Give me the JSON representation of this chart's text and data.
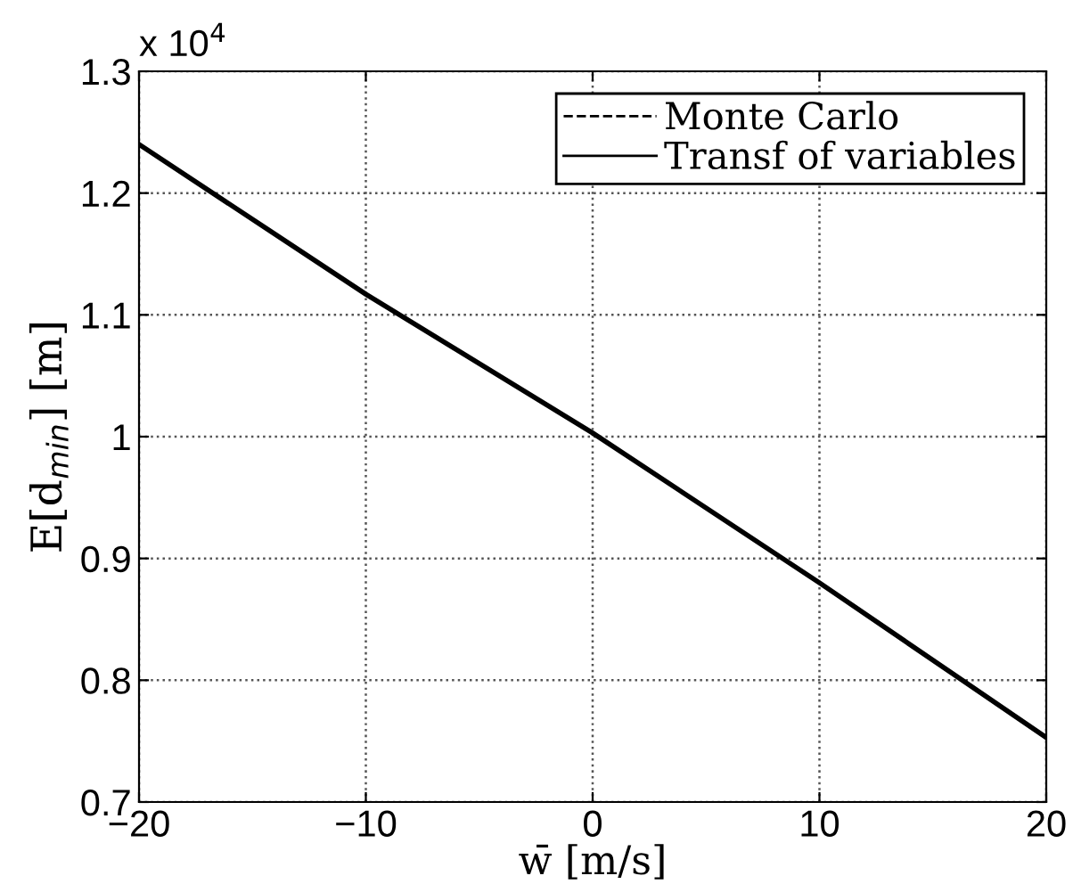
{
  "chart_data": {
    "type": "line",
    "xlabel": "w̄ [m/s]",
    "ylabel": "E[d$_{min}$] [m]",
    "x": [
      -20,
      -10,
      0,
      10,
      20
    ],
    "series": [
      {
        "name": "Monte Carlo",
        "color": "#000000",
        "line_style": "dashed",
        "values": [
          null,
          null,
          null,
          null,
          null
        ]
      },
      {
        "name": "Transf of variables",
        "color": "#000000",
        "line_style": "solid",
        "values": [
          1.24,
          1.117,
          1.003,
          0.88,
          0.753
        ]
      }
    ],
    "xlim": [
      -20,
      20
    ],
    "xticks": [
      {
        "value": -20,
        "label": "−20"
      },
      {
        "value": -10,
        "label": "−10"
      },
      0,
      10,
      20
    ],
    "ylim": [
      0.7,
      1.3
    ],
    "yticks": [
      0.7,
      0.8,
      0.9,
      1,
      1.1,
      1.2,
      1.3
    ],
    "annotations": [
      "x 10$^{4}$"
    ],
    "grid": true,
    "legend": "top right",
    "marker": "none"
  }
}
